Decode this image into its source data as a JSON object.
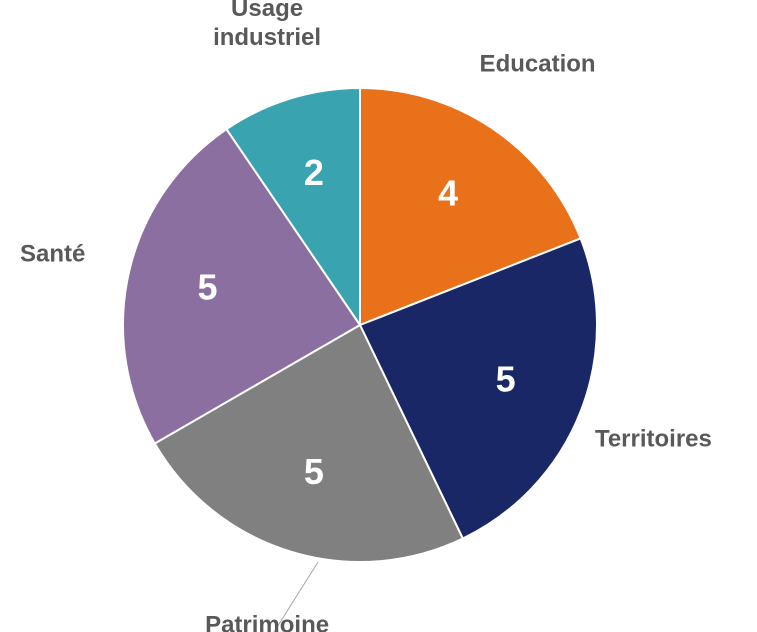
{
  "chart_data": {
    "type": "pie",
    "categories": [
      "Education",
      "Territoires",
      "Patrimoine",
      "Santé",
      "Usage industriel"
    ],
    "values": [
      4,
      5,
      5,
      5,
      2
    ],
    "colors": [
      "#e8711a",
      "#1a2766",
      "#808080",
      "#8b6fa0",
      "#3aa3b0"
    ]
  }
}
